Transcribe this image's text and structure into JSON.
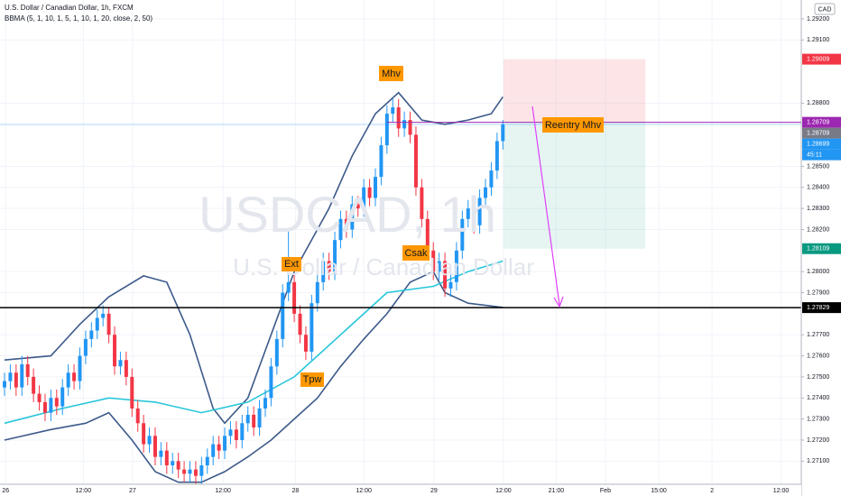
{
  "chart_data": {
    "type": "candlestick",
    "title": "U.S. Dollar / Canadian Dollar, 1h, FXCM",
    "subtitle": "BBMA (5, 1, 10, 1, 5, 1, 10, 1, 20, close, 2, 50)",
    "watermark": "USDCAD, 1h",
    "watermark_sub": "U.S. Dollar / Canadian Dollar",
    "currency": "CAD",
    "annotations": [
      "Mhv",
      "Ext",
      "Csak",
      "Tpw",
      "Reentry Mhv"
    ],
    "up_color": "#2196f3",
    "down_color": "#f23645",
    "xlim": [
      -0.78,
      137.5
    ],
    "ylim": [
      1.2699,
      1.2929
    ],
    "grid": true,
    "xticks": [
      {
        "value": 0.2,
        "label": "26"
      },
      {
        "value": 13.6,
        "label": "12:00"
      },
      {
        "value": 22.1,
        "label": "27"
      },
      {
        "value": 37.7,
        "label": "12:00"
      },
      {
        "value": 50.2,
        "label": "28"
      },
      {
        "value": 62,
        "label": "12:00"
      },
      {
        "value": 74.1,
        "label": "29"
      },
      {
        "value": 86.1,
        "label": "12:00"
      },
      {
        "value": 95.2,
        "label": "21:00"
      },
      {
        "value": 103.7,
        "label": "Feb"
      },
      {
        "value": 112.9,
        "label": "15:00"
      },
      {
        "value": 122.1,
        "label": "2"
      },
      {
        "value": 134,
        "label": "12:00"
      }
    ],
    "yticks": [
      {
        "value": 1.292,
        "label": "1.29200"
      },
      {
        "value": 1.291,
        "label": "1.29100"
      },
      {
        "value": 1.288,
        "label": "1.28800"
      },
      {
        "value": 1.285,
        "label": "1.28500"
      },
      {
        "value": 1.284,
        "label": "1.28400"
      },
      {
        "value": 1.283,
        "label": "1.28300"
      },
      {
        "value": 1.282,
        "label": "1.28200"
      },
      {
        "value": 1.28,
        "label": "1.28000"
      },
      {
        "value": 1.279,
        "label": "1.27900"
      },
      {
        "value": 1.277,
        "label": "1.27700"
      },
      {
        "value": 1.276,
        "label": "1.27600"
      },
      {
        "value": 1.275,
        "label": "1.27500"
      },
      {
        "value": 1.274,
        "label": "1.27400"
      },
      {
        "value": 1.273,
        "label": "1.27300"
      },
      {
        "value": 1.272,
        "label": "1.27200"
      },
      {
        "value": 1.271,
        "label": "1.27100"
      }
    ],
    "ohlc": [
      [
        1.2745,
        1.2752,
        1.2741,
        1.2748
      ],
      [
        1.2748,
        1.2756,
        1.2744,
        1.2752
      ],
      [
        1.2752,
        1.2756,
        1.2741,
        1.2745
      ],
      [
        1.2745,
        1.276,
        1.2741,
        1.2756
      ],
      [
        1.2756,
        1.276,
        1.2746,
        1.275
      ],
      [
        1.275,
        1.2754,
        1.2738,
        1.2742
      ],
      [
        1.2742,
        1.2746,
        1.2734,
        1.2738
      ],
      [
        1.2738,
        1.2742,
        1.2729,
        1.2733
      ],
      [
        1.2733,
        1.2744,
        1.2729,
        1.274
      ],
      [
        1.274,
        1.2744,
        1.2732,
        1.2736
      ],
      [
        1.2736,
        1.2749,
        1.2732,
        1.2745
      ],
      [
        1.2745,
        1.2756,
        1.2741,
        1.2752
      ],
      [
        1.2752,
        1.2756,
        1.2744,
        1.2748
      ],
      [
        1.2748,
        1.2764,
        1.2744,
        1.276
      ],
      [
        1.276,
        1.2772,
        1.2756,
        1.2768
      ],
      [
        1.2768,
        1.2776,
        1.2764,
        1.2772
      ],
      [
        1.2772,
        1.2782,
        1.2768,
        1.2778
      ],
      [
        1.2778,
        1.2784,
        1.2774,
        1.278
      ],
      [
        1.278,
        1.2783,
        1.2766,
        1.277
      ],
      [
        1.277,
        1.2774,
        1.2751,
        1.2755
      ],
      [
        1.2755,
        1.2762,
        1.2751,
        1.2758
      ],
      [
        1.2758,
        1.2762,
        1.2746,
        1.275
      ],
      [
        1.275,
        1.2754,
        1.2731,
        1.2735
      ],
      [
        1.2735,
        1.2739,
        1.2724,
        1.2728
      ],
      [
        1.2728,
        1.2732,
        1.2714,
        1.2718
      ],
      [
        1.2718,
        1.2726,
        1.2714,
        1.2722
      ],
      [
        1.2722,
        1.2726,
        1.2708,
        1.2712
      ],
      [
        1.2712,
        1.2719,
        1.2708,
        1.2715
      ],
      [
        1.2715,
        1.2719,
        1.2704,
        1.2708
      ],
      [
        1.2708,
        1.2714,
        1.2704,
        1.271
      ],
      [
        1.271,
        1.2714,
        1.2702,
        1.2706
      ],
      [
        1.2706,
        1.271,
        1.27,
        1.2704
      ],
      [
        1.2704,
        1.271,
        1.27,
        1.2706
      ],
      [
        1.2706,
        1.271,
        1.2699,
        1.2703
      ],
      [
        1.2703,
        1.2712,
        1.2699,
        1.2708
      ],
      [
        1.2708,
        1.2716,
        1.2704,
        1.2712
      ],
      [
        1.2712,
        1.2722,
        1.2708,
        1.2718
      ],
      [
        1.2718,
        1.2722,
        1.2711,
        1.2715
      ],
      [
        1.2715,
        1.2726,
        1.2711,
        1.2722
      ],
      [
        1.2722,
        1.2729,
        1.2718,
        1.2725
      ],
      [
        1.2725,
        1.2729,
        1.2716,
        1.272
      ],
      [
        1.272,
        1.2732,
        1.2716,
        1.2728
      ],
      [
        1.2728,
        1.2736,
        1.2724,
        1.2732
      ],
      [
        1.2732,
        1.2736,
        1.2722,
        1.2726
      ],
      [
        1.2726,
        1.2739,
        1.2722,
        1.2735
      ],
      [
        1.2735,
        1.2744,
        1.2731,
        1.274
      ],
      [
        1.274,
        1.2759,
        1.2736,
        1.2755
      ],
      [
        1.2755,
        1.2772,
        1.2751,
        1.2768
      ],
      [
        1.2768,
        1.2794,
        1.2764,
        1.279
      ],
      [
        1.279,
        1.282,
        1.2786,
        1.2795
      ],
      [
        1.2795,
        1.2799,
        1.2776,
        1.278
      ],
      [
        1.278,
        1.2784,
        1.2766,
        1.277
      ],
      [
        1.277,
        1.2774,
        1.2758,
        1.2762
      ],
      [
        1.2762,
        1.2789,
        1.2758,
        1.2785
      ],
      [
        1.2785,
        1.2799,
        1.2781,
        1.2795
      ],
      [
        1.2795,
        1.2809,
        1.2791,
        1.2805
      ],
      [
        1.2805,
        1.2809,
        1.2796,
        1.28
      ],
      [
        1.28,
        1.2819,
        1.2796,
        1.2815
      ],
      [
        1.2815,
        1.2829,
        1.2811,
        1.2825
      ],
      [
        1.2825,
        1.2829,
        1.2816,
        1.282
      ],
      [
        1.282,
        1.2836,
        1.2816,
        1.2832
      ],
      [
        1.2832,
        1.2836,
        1.2826,
        1.283
      ],
      [
        1.283,
        1.2844,
        1.2826,
        1.284
      ],
      [
        1.284,
        1.2844,
        1.2831,
        1.2835
      ],
      [
        1.2835,
        1.2849,
        1.2831,
        1.2845
      ],
      [
        1.2845,
        1.2864,
        1.2841,
        1.286
      ],
      [
        1.286,
        1.2879,
        1.2856,
        1.2875
      ],
      [
        1.2875,
        1.2882,
        1.2871,
        1.2878
      ],
      [
        1.2878,
        1.2882,
        1.2864,
        1.2868
      ],
      [
        1.2868,
        1.2876,
        1.2864,
        1.2872
      ],
      [
        1.2872,
        1.2876,
        1.2861,
        1.2865
      ],
      [
        1.2865,
        1.2869,
        1.2836,
        1.284
      ],
      [
        1.284,
        1.2844,
        1.2821,
        1.2825
      ],
      [
        1.2825,
        1.2829,
        1.2806,
        1.281
      ],
      [
        1.281,
        1.2814,
        1.2796,
        1.28
      ],
      [
        1.28,
        1.2809,
        1.2796,
        1.2805
      ],
      [
        1.2805,
        1.2809,
        1.2788,
        1.2792
      ],
      [
        1.2792,
        1.2799,
        1.2788,
        1.2795
      ],
      [
        1.2795,
        1.2814,
        1.2791,
        1.281
      ],
      [
        1.281,
        1.2829,
        1.2806,
        1.2825
      ],
      [
        1.2825,
        1.2834,
        1.2821,
        1.283
      ],
      [
        1.283,
        1.2834,
        1.2818,
        1.2822
      ],
      [
        1.2822,
        1.2839,
        1.2818,
        1.2835
      ],
      [
        1.2835,
        1.2844,
        1.2831,
        1.284
      ],
      [
        1.284,
        1.2852,
        1.2836,
        1.2848
      ],
      [
        1.2848,
        1.2866,
        1.2844,
        1.2862
      ],
      [
        1.2862,
        1.2872,
        1.2858,
        1.28699
      ]
    ],
    "series": [
      {
        "color": "#3d5a8a",
        "x": [
          0,
          8,
          13,
          18,
          24,
          28,
          32,
          36,
          38,
          42,
          46,
          50,
          52,
          56,
          60,
          64,
          68,
          72,
          76,
          80,
          84,
          86
        ],
        "values": [
          1.2758,
          1.276,
          1.2775,
          1.2788,
          1.2798,
          1.2795,
          1.277,
          1.2735,
          1.2728,
          1.274,
          1.277,
          1.28,
          1.281,
          1.283,
          1.2855,
          1.2875,
          1.2885,
          1.2872,
          1.287,
          1.2872,
          1.2875,
          1.2883
        ]
      },
      {
        "color": "#3d5a8a",
        "x": [
          0,
          8,
          14,
          18,
          22,
          26,
          30,
          34,
          38,
          42,
          46,
          50,
          54,
          58,
          62,
          66,
          70,
          74,
          76,
          80,
          86
        ],
        "values": [
          1.272,
          1.2725,
          1.2728,
          1.2733,
          1.272,
          1.2705,
          1.27,
          1.27,
          1.2705,
          1.2712,
          1.272,
          1.273,
          1.274,
          1.2755,
          1.2768,
          1.278,
          1.2795,
          1.28,
          1.279,
          1.2785,
          1.2783
        ]
      },
      {
        "color": "#26c6da",
        "x": [
          0,
          10,
          18,
          26,
          34,
          42,
          50,
          58,
          66,
          74,
          80,
          86
        ],
        "values": [
          1.2728,
          1.2735,
          1.274,
          1.2738,
          1.2733,
          1.2738,
          1.275,
          1.277,
          1.279,
          1.2793,
          1.28,
          1.2805
        ]
      }
    ],
    "position": {
      "entry": 1.28709,
      "stop": 1.29009,
      "target": 1.28109,
      "x_start": 86.1,
      "x_end": 110.6
    },
    "hlines": [
      {
        "value": 1.27829,
        "color": "#000000"
      },
      {
        "value": 1.28709,
        "color": "#9c27b0",
        "x_start": 66
      }
    ],
    "price_tags": [
      {
        "value": 1.29009,
        "color": "#f23645"
      },
      {
        "value": 1.28709,
        "color": "#9c27b0"
      },
      {
        "value": 1.28709,
        "color": "#787b86"
      },
      {
        "value": 1.28699,
        "color": "#2196f3"
      },
      {
        "label": "45:11",
        "color": "#2196f3"
      },
      {
        "value": 1.28109,
        "color": "#089981"
      },
      {
        "value": 1.27829,
        "color": "#000000"
      }
    ]
  }
}
